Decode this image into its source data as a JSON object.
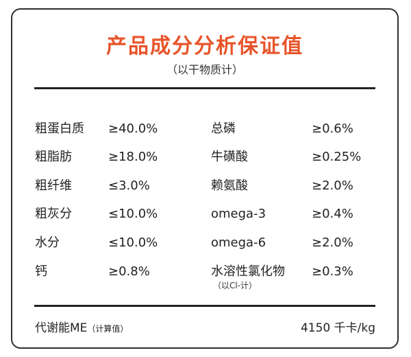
{
  "title": "产品成分分析保证值",
  "subtitle": "（以干物质计）",
  "rows": [
    {
      "left_name": "粗蛋白质",
      "left_value": "≥40.0%",
      "right_name": "总磷",
      "right_value": "≥0.6%"
    },
    {
      "left_name": "粗脂肪",
      "left_value": "≥18.0%",
      "right_name": "牛磺酸",
      "right_value": "≥0.25%"
    },
    {
      "left_name": "粗纤维",
      "left_value": "≤3.0%",
      "right_name": "赖氨酸",
      "right_value": "≥2.0%"
    },
    {
      "left_name": "粗灰分",
      "left_value": "≤10.0%",
      "right_name": "omega-3",
      "right_value": "≥0.4%"
    },
    {
      "left_name": "水分",
      "left_value": "≤10.0%",
      "right_name": "omega-6",
      "right_value": "≥2.0%"
    },
    {
      "left_name": "钙",
      "left_value": "≥0.8%",
      "right_name": "水溶性氯化物",
      "right_note": "（以Cl-计）",
      "right_value": "≥0.3%"
    }
  ],
  "energy": {
    "label": "代谢能ME",
    "note": "（计算值）",
    "value": "4150 千卡/kg"
  },
  "colors": {
    "title": "#e8542a",
    "text": "#222222",
    "border": "#2f2f2f"
  }
}
